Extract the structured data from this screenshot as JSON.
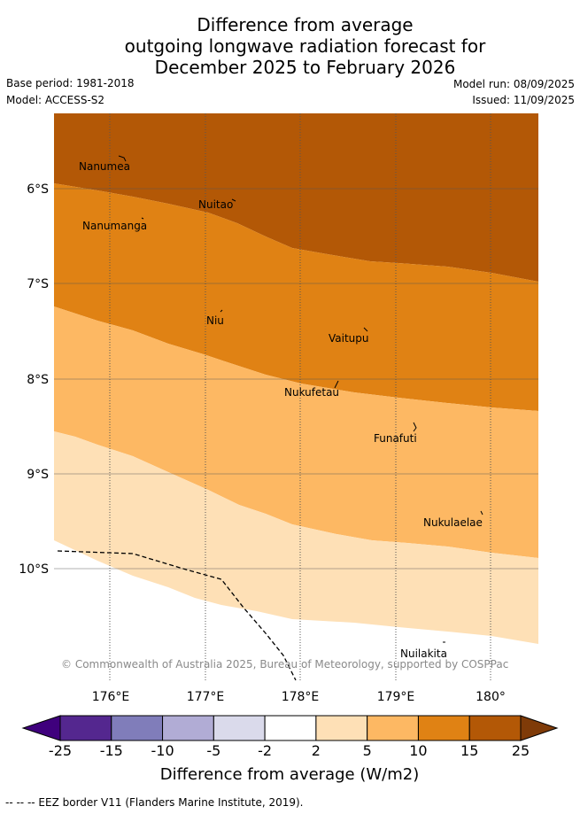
{
  "title": {
    "line1": "Difference from average",
    "line2": "outgoing longwave radiation forecast for",
    "line3": "December 2025 to February 2026"
  },
  "meta": {
    "base_period": "Base period: 1981-2018",
    "model": "Model: ACCESS-S2",
    "model_run": "Model run: 08/09/2025",
    "issued": "Issued: 11/09/2025"
  },
  "map": {
    "lon_ticks": [
      "176°E",
      "177°E",
      "178°E",
      "179°E",
      "180°"
    ],
    "lat_ticks": [
      "6°S",
      "7°S",
      "8°S",
      "9°S",
      "10°S"
    ],
    "places": {
      "nanumea": "Nanumea",
      "nuitao": "Nuitao",
      "nanumanga": "Nanumanga",
      "niu": "Niu",
      "vaitupu": "Vaitupu",
      "nukufetau": "Nukufetau",
      "funafuti": "Funafuti",
      "nukulaelae": "Nukulaelae",
      "nuilakita": "Nuilakita"
    },
    "copyright": "© Commonwealth of Australia 2025, Bureau of Meteorology, supported by COSPPac"
  },
  "colorbar": {
    "labels": [
      "-25",
      "-15",
      "-10",
      "-5",
      "-2",
      "2",
      "5",
      "10",
      "15",
      "25"
    ],
    "colors": [
      "#3f007d",
      "#54278f",
      "#807dba",
      "#b1acd5",
      "#dadaeb",
      "#ffffff",
      "#fee0b6",
      "#fdb863",
      "#e08214",
      "#b35806",
      "#7f3b08"
    ],
    "title": "Difference from average (W/m2)"
  },
  "footnote": "--  --  -- EEZ border V11 (Flanders Marine Institute, 2019)."
}
